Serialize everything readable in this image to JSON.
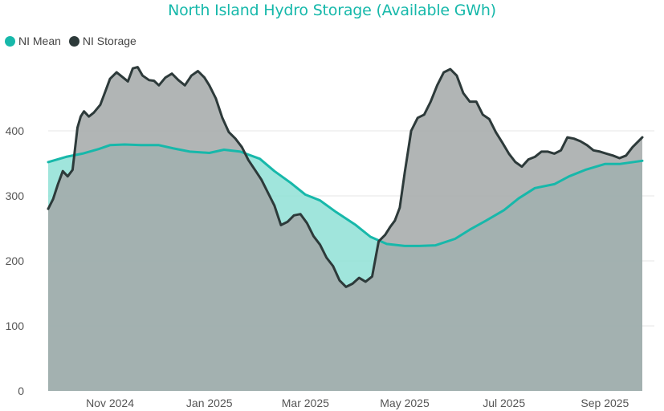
{
  "chart_data": {
    "type": "area",
    "title": "North Island Hydro Storage (Available GWh)",
    "xlabel": "",
    "ylabel": "",
    "ylim": [
      0,
      500
    ],
    "yticks": [
      0,
      100,
      200,
      300,
      400
    ],
    "grid": true,
    "legend": "top-left",
    "x_domain": [
      "2024-09-24",
      "2025-09-24"
    ],
    "x_ticks": [
      {
        "label": "Nov 2024",
        "date": "2024-11-01"
      },
      {
        "label": "Jan 2025",
        "date": "2025-01-01"
      },
      {
        "label": "Mar 2025",
        "date": "2025-03-01"
      },
      {
        "label": "May 2025",
        "date": "2025-05-01"
      },
      {
        "label": "Jul 2025",
        "date": "2025-07-01"
      },
      {
        "label": "Sep 2025",
        "date": "2025-09-01"
      }
    ],
    "series": [
      {
        "name": "NI Mean",
        "color": "#17b8aa",
        "fill": "#8fe0d6",
        "x": [
          "2024-09-24",
          "2024-10-05",
          "2024-10-15",
          "2024-10-25",
          "2024-11-01",
          "2024-11-10",
          "2024-11-20",
          "2024-12-01",
          "2024-12-10",
          "2024-12-20",
          "2025-01-01",
          "2025-01-10",
          "2025-01-20",
          "2025-02-01",
          "2025-02-10",
          "2025-02-20",
          "2025-03-01",
          "2025-03-10",
          "2025-03-20",
          "2025-04-01",
          "2025-04-10",
          "2025-04-20",
          "2025-05-01",
          "2025-05-10",
          "2025-05-20",
          "2025-06-01",
          "2025-06-10",
          "2025-06-20",
          "2025-07-01",
          "2025-07-10",
          "2025-07-20",
          "2025-08-01",
          "2025-08-10",
          "2025-08-20",
          "2025-09-01",
          "2025-09-10",
          "2025-09-24"
        ],
        "values": [
          352,
          360,
          365,
          372,
          378,
          379,
          378,
          378,
          373,
          368,
          366,
          371,
          368,
          357,
          338,
          320,
          302,
          293,
          275,
          255,
          237,
          226,
          223,
          223,
          224,
          234,
          248,
          262,
          278,
          296,
          312,
          318,
          330,
          340,
          349,
          349,
          354
        ]
      },
      {
        "name": "NI Storage",
        "color": "#2d3a3a",
        "fill": "#a3a8a8",
        "x": [
          "2024-09-24",
          "2024-09-27",
          "2024-09-30",
          "2024-10-03",
          "2024-10-06",
          "2024-10-09",
          "2024-10-12",
          "2024-10-14",
          "2024-10-16",
          "2024-10-19",
          "2024-10-22",
          "2024-10-26",
          "2024-10-29",
          "2024-11-01",
          "2024-11-05",
          "2024-11-09",
          "2024-11-12",
          "2024-11-15",
          "2024-11-18",
          "2024-11-21",
          "2024-11-25",
          "2024-11-28",
          "2024-12-01",
          "2024-12-05",
          "2024-12-09",
          "2024-12-13",
          "2024-12-17",
          "2024-12-21",
          "2024-12-25",
          "2024-12-29",
          "2025-01-01",
          "2025-01-05",
          "2025-01-09",
          "2025-01-13",
          "2025-01-17",
          "2025-01-21",
          "2025-01-25",
          "2025-01-29",
          "2025-02-02",
          "2025-02-06",
          "2025-02-10",
          "2025-02-14",
          "2025-02-18",
          "2025-02-22",
          "2025-02-26",
          "2025-03-02",
          "2025-03-06",
          "2025-03-10",
          "2025-03-14",
          "2025-03-18",
          "2025-03-22",
          "2025-03-26",
          "2025-03-30",
          "2025-04-03",
          "2025-04-07",
          "2025-04-11",
          "2025-04-15",
          "2025-04-19",
          "2025-04-22",
          "2025-04-25",
          "2025-04-28",
          "2025-05-01",
          "2025-05-05",
          "2025-05-09",
          "2025-05-13",
          "2025-05-17",
          "2025-05-21",
          "2025-05-25",
          "2025-05-29",
          "2025-06-02",
          "2025-06-06",
          "2025-06-10",
          "2025-06-14",
          "2025-06-18",
          "2025-06-22",
          "2025-06-26",
          "2025-06-30",
          "2025-07-04",
          "2025-07-08",
          "2025-07-12",
          "2025-07-16",
          "2025-07-20",
          "2025-07-24",
          "2025-07-28",
          "2025-08-01",
          "2025-08-05",
          "2025-08-09",
          "2025-08-13",
          "2025-08-17",
          "2025-08-21",
          "2025-08-25",
          "2025-08-29",
          "2025-09-02",
          "2025-09-06",
          "2025-09-10",
          "2025-09-14",
          "2025-09-18",
          "2025-09-24"
        ],
        "values": [
          280,
          295,
          318,
          338,
          330,
          340,
          405,
          422,
          430,
          422,
          428,
          440,
          460,
          480,
          490,
          482,
          476,
          496,
          498,
          485,
          478,
          477,
          470,
          482,
          488,
          478,
          470,
          485,
          492,
          482,
          470,
          450,
          420,
          398,
          388,
          375,
          355,
          340,
          325,
          305,
          285,
          255,
          260,
          270,
          272,
          258,
          238,
          225,
          205,
          192,
          170,
          160,
          165,
          174,
          168,
          176,
          230,
          240,
          252,
          262,
          282,
          335,
          400,
          420,
          425,
          445,
          470,
          490,
          495,
          485,
          458,
          445,
          445,
          425,
          418,
          398,
          382,
          365,
          352,
          345,
          356,
          360,
          368,
          368,
          365,
          370,
          390,
          388,
          384,
          378,
          370,
          368,
          365,
          362,
          358,
          362,
          375,
          390
        ]
      }
    ]
  }
}
